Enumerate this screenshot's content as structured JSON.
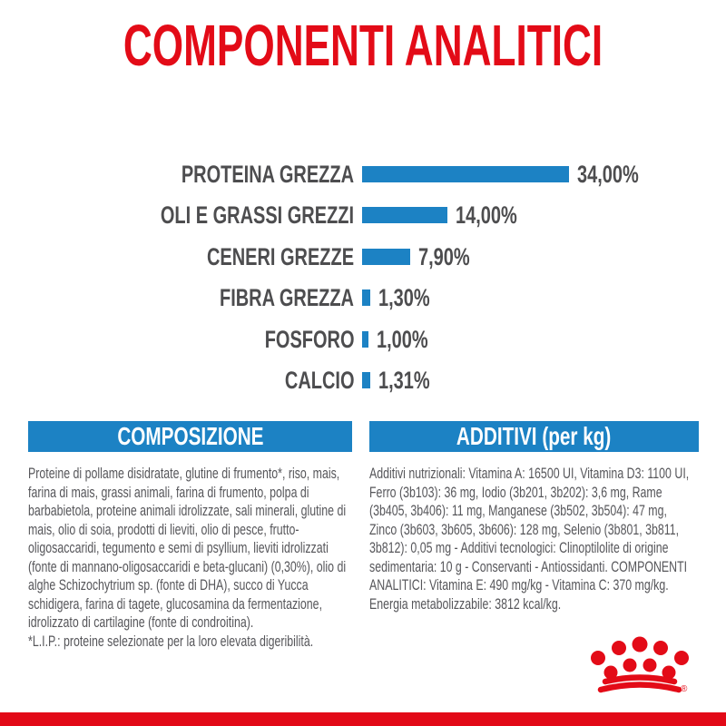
{
  "title": "COMPONENTI ANALITICI",
  "colors": {
    "brand_red": "#e30b17",
    "brand_blue": "#1c82c4",
    "label_gray": "#4d4d4f",
    "body_gray": "#56565a"
  },
  "chart_data": {
    "type": "bar",
    "orientation": "horizontal",
    "unit": "%",
    "categories": [
      "PROTEINA GREZZA",
      "OLI E GRASSI GREZZI",
      "CENERI GREZZE",
      "FIBRA GREZZA",
      "FOSFORO",
      "CALCIO"
    ],
    "values": [
      34.0,
      14.0,
      7.9,
      1.3,
      1.0,
      1.31
    ],
    "value_labels": [
      "34,00%",
      "14,00%",
      "7,90%",
      "1,30%",
      "1,00%",
      "1,31%"
    ],
    "xlim": [
      0,
      34
    ],
    "bar_color": "#1c82c4",
    "grid": false,
    "legend": false,
    "title": "COMPONENTI ANALITICI"
  },
  "sections": {
    "composizione": {
      "heading": "COMPOSIZIONE",
      "body": "Proteine di pollame disidratate, glutine di frumento*, riso, mais, farina di mais, grassi animali, farina di frumento, polpa di barbabietola, proteine animali idrolizzate, sali minerali, glutine di mais, olio di soia, prodotti di lieviti, olio di pesce, frutto-oligosaccaridi, tegumento e semi di psyllium, lieviti idrolizzati (fonte di mannano-oligosaccaridi e beta-glucani) (0,30%), olio di alghe Schizochytrium sp. (fonte di DHA), succo di Yucca schidigera, farina di tagete, glucosamina da fermentazione, idrolizzato di cartilagine (fonte di condroitina).",
      "footnote": "*L.I.P.: proteine selezionate per la loro elevata digeribilità."
    },
    "additivi": {
      "heading": "ADDITIVI (per kg)",
      "body": "Additivi nutrizionali: Vitamina A: 16500 UI, Vitamina D3: 1100 UI, Ferro (3b103): 36 mg, Iodio (3b201, 3b202): 3,6 mg, Rame (3b405, 3b406): 11 mg, Manganese (3b502, 3b504): 47 mg, Zinco (3b603, 3b605, 3b606): 128 mg, Selenio (3b801, 3b811, 3b812): 0,05 mg - Additivi tecnologici: Clinoptilolite di origine sedimentaria: 10 g - Conservanti - Antiossidanti. COMPONENTI ANALITICI: Vitamina E: 490 mg/kg - Vitamina C: 370 mg/kg. Energia metabolizzabile: 3812 kcal/kg."
    }
  },
  "footer": {
    "logo": "royal-canin-crown-icon"
  }
}
